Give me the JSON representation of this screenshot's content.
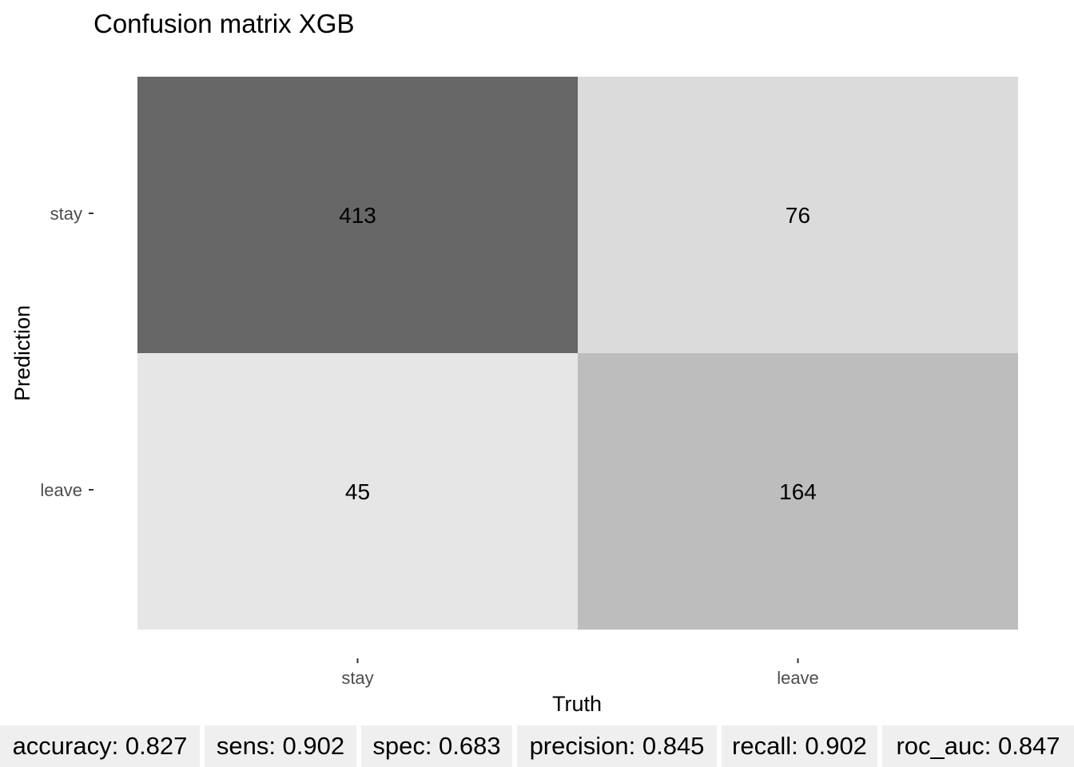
{
  "chart_data": {
    "type": "heatmap",
    "title": "Confusion matrix XGB",
    "xlabel": "Truth",
    "ylabel": "Prediction",
    "x_categories": [
      "stay",
      "leave"
    ],
    "y_categories": [
      "stay",
      "leave"
    ],
    "values": [
      [
        413,
        76
      ],
      [
        45,
        164
      ]
    ],
    "fill_scale": {
      "low": "#e6e6e6",
      "high": "#676767"
    },
    "legend": "none",
    "grid": false
  },
  "metrics": [
    {
      "label": "accuracy: 0.827"
    },
    {
      "label": "sens: 0.902"
    },
    {
      "label": "spec: 0.683"
    },
    {
      "label": "precision: 0.845"
    },
    {
      "label": "recall: 0.902"
    },
    {
      "label": "roc_auc: 0.847"
    }
  ]
}
